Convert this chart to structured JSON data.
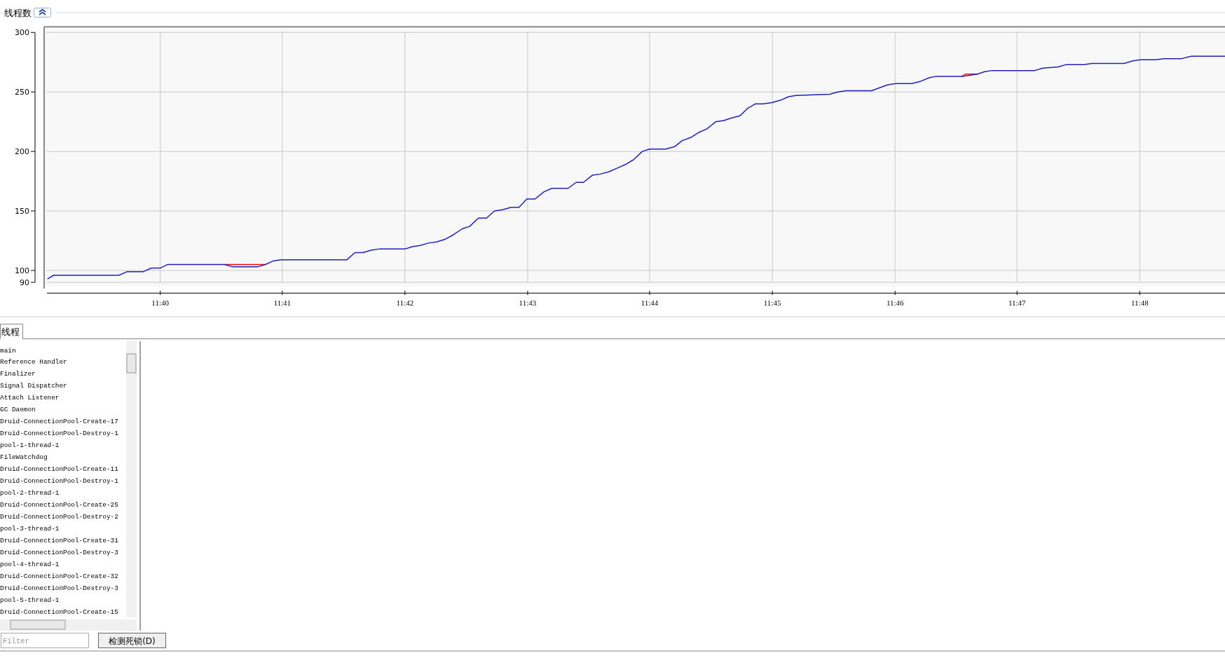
{
  "chart_data": {
    "type": "line",
    "title": "线程数",
    "xlim": [
      11.6509,
      11.8116
    ],
    "ylim": [
      86.6,
      304.7
    ],
    "xticks": [
      {
        "value": 11.6667,
        "label": "11:40"
      },
      {
        "value": 11.6833,
        "label": "11:41"
      },
      {
        "value": 11.7,
        "label": "11:42"
      },
      {
        "value": 11.7167,
        "label": "11:43"
      },
      {
        "value": 11.7333,
        "label": "11:44"
      },
      {
        "value": 11.75,
        "label": "11:45"
      },
      {
        "value": 11.7667,
        "label": "11:46"
      },
      {
        "value": 11.7833,
        "label": "11:47"
      },
      {
        "value": 11.8,
        "label": "11:48"
      }
    ],
    "yticks": [
      90,
      100,
      150,
      200,
      250,
      300
    ],
    "grid": true,
    "series": [
      {
        "color": "#ff0000",
        "x": [
          11.6755,
          11.681
        ],
        "values": [
          105,
          105
        ]
      },
      {
        "color": "#ff0000",
        "x": [
          11.7758,
          11.7763,
          11.7773,
          11.7779
        ],
        "values": [
          263,
          265,
          265,
          265
        ]
      },
      {
        "color": "#1f1fbf",
        "x": [
          11.6514,
          11.6522,
          11.6611,
          11.6622,
          11.6644,
          11.6655,
          11.6667,
          11.6677,
          11.6755,
          11.6766,
          11.6799,
          11.681,
          11.6821,
          11.6832,
          11.6921,
          11.6932,
          11.6943,
          11.6954,
          11.6965,
          11.7,
          11.701,
          11.7021,
          11.7032,
          11.7043,
          11.7054,
          11.7066,
          11.7078,
          11.7088,
          11.71,
          11.7111,
          11.7122,
          11.7133,
          11.7144,
          11.7155,
          11.7166,
          11.7177,
          11.7189,
          11.72,
          11.7222,
          11.7233,
          11.7243,
          11.7255,
          11.7266,
          11.7278,
          11.7289,
          11.73,
          11.7311,
          11.7323,
          11.7333,
          11.7355,
          11.7367,
          11.7377,
          11.739,
          11.74,
          11.7411,
          11.7423,
          11.7434,
          11.7444,
          11.7456,
          11.7466,
          11.7477,
          11.7487,
          11.7499,
          11.7511,
          11.7522,
          11.7532,
          11.7578,
          11.7589,
          11.76,
          11.7635,
          11.7657,
          11.7668,
          11.769,
          11.7702,
          11.7714,
          11.7722,
          11.7758,
          11.7768,
          11.7779,
          11.7789,
          11.7799,
          11.7857,
          11.7868,
          11.7889,
          11.79,
          11.7924,
          11.7935,
          11.7979,
          11.799,
          11.8001,
          11.8022,
          11.8033,
          11.8057,
          11.807,
          11.8116
        ],
        "values": [
          93,
          96,
          96,
          99,
          99,
          102,
          102,
          105,
          105,
          103,
          103,
          105,
          108,
          109,
          109,
          115,
          115,
          117,
          118,
          118,
          120,
          121,
          123,
          124,
          126,
          130,
          135,
          137,
          144,
          144,
          150,
          151,
          153,
          153,
          160,
          160,
          166,
          169,
          169,
          174,
          174,
          180,
          181,
          183,
          186,
          189,
          193,
          200,
          202,
          202,
          204,
          209,
          212,
          216,
          219,
          225,
          226,
          228,
          230,
          236,
          240,
          240,
          241,
          243,
          246,
          247,
          248,
          250,
          251,
          251,
          256,
          257,
          257,
          259,
          262,
          263,
          263,
          264,
          265,
          267,
          268,
          268,
          270,
          271,
          273,
          273,
          274,
          274,
          276,
          277,
          277,
          278,
          278,
          280,
          280
        ]
      }
    ],
    "annotations": [
      "线程",
      "main",
      "Reference Handler",
      "Finalizer",
      "Signal Dispatcher",
      "Attach Listener",
      "GC Daemon",
      "Druid-ConnectionPool-Create-17",
      "Druid-ConnectionPool-Destroy-1",
      "pool-1-thread-1",
      "FileWatchdog",
      "Druid-ConnectionPool-Create-11",
      "Druid-ConnectionPool-Destroy-1",
      "pool-2-thread-1",
      "Druid-ConnectionPool-Create-25",
      "Druid-ConnectionPool-Destroy-2",
      "pool-3-thread-1",
      "Druid-ConnectionPool-Create-31",
      "Druid-ConnectionPool-Destroy-3",
      "pool-4-thread-1",
      "Druid-ConnectionPool-Create-32",
      "Druid-ConnectionPool-Destroy-3",
      "pool-5-thread-1",
      "Druid-ConnectionPool-Create-15",
      "Filter",
      "检测死锁(D)"
    ]
  }
}
